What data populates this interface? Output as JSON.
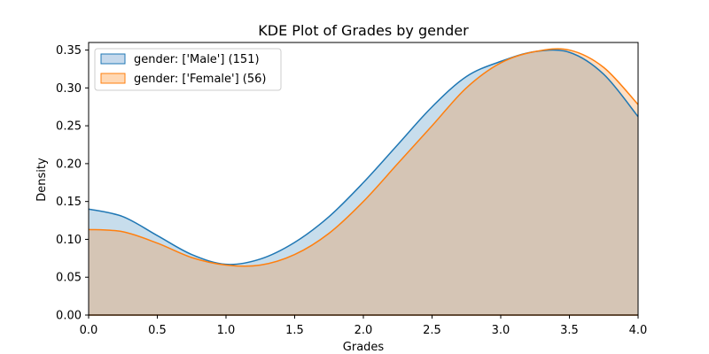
{
  "chart_data": {
    "type": "area",
    "title": "KDE Plot of Grades by gender",
    "xlabel": "Grades",
    "ylabel": "Density",
    "xlim": [
      0,
      4
    ],
    "ylim": [
      0,
      0.36
    ],
    "x_ticks": [
      "0.0",
      "0.5",
      "1.0",
      "1.5",
      "2.0",
      "2.5",
      "3.0",
      "3.5",
      "4.0"
    ],
    "y_ticks": [
      "0.00",
      "0.05",
      "0.10",
      "0.15",
      "0.20",
      "0.25",
      "0.30",
      "0.35"
    ],
    "grid": false,
    "legend_position": "top-left",
    "x": [
      0,
      0.25,
      0.5,
      0.75,
      1.0,
      1.25,
      1.5,
      1.75,
      2.0,
      2.25,
      2.5,
      2.75,
      3.0,
      3.25,
      3.5,
      3.75,
      4.0
    ],
    "series": [
      {
        "name": "gender: ['Male'] (151)",
        "values": [
          0.14,
          0.13,
          0.105,
          0.08,
          0.067,
          0.074,
          0.096,
          0.13,
          0.175,
          0.225,
          0.275,
          0.315,
          0.335,
          0.348,
          0.347,
          0.318,
          0.262
        ],
        "color": "#1f77b4",
        "fill": "#c6d9ec"
      },
      {
        "name": "gender: ['Female'] (56)",
        "values": [
          0.113,
          0.11,
          0.095,
          0.076,
          0.066,
          0.066,
          0.08,
          0.108,
          0.15,
          0.2,
          0.25,
          0.3,
          0.333,
          0.348,
          0.35,
          0.327,
          0.278
        ],
        "color": "#ff7f0e",
        "fill": "#ffd8b4"
      }
    ]
  }
}
